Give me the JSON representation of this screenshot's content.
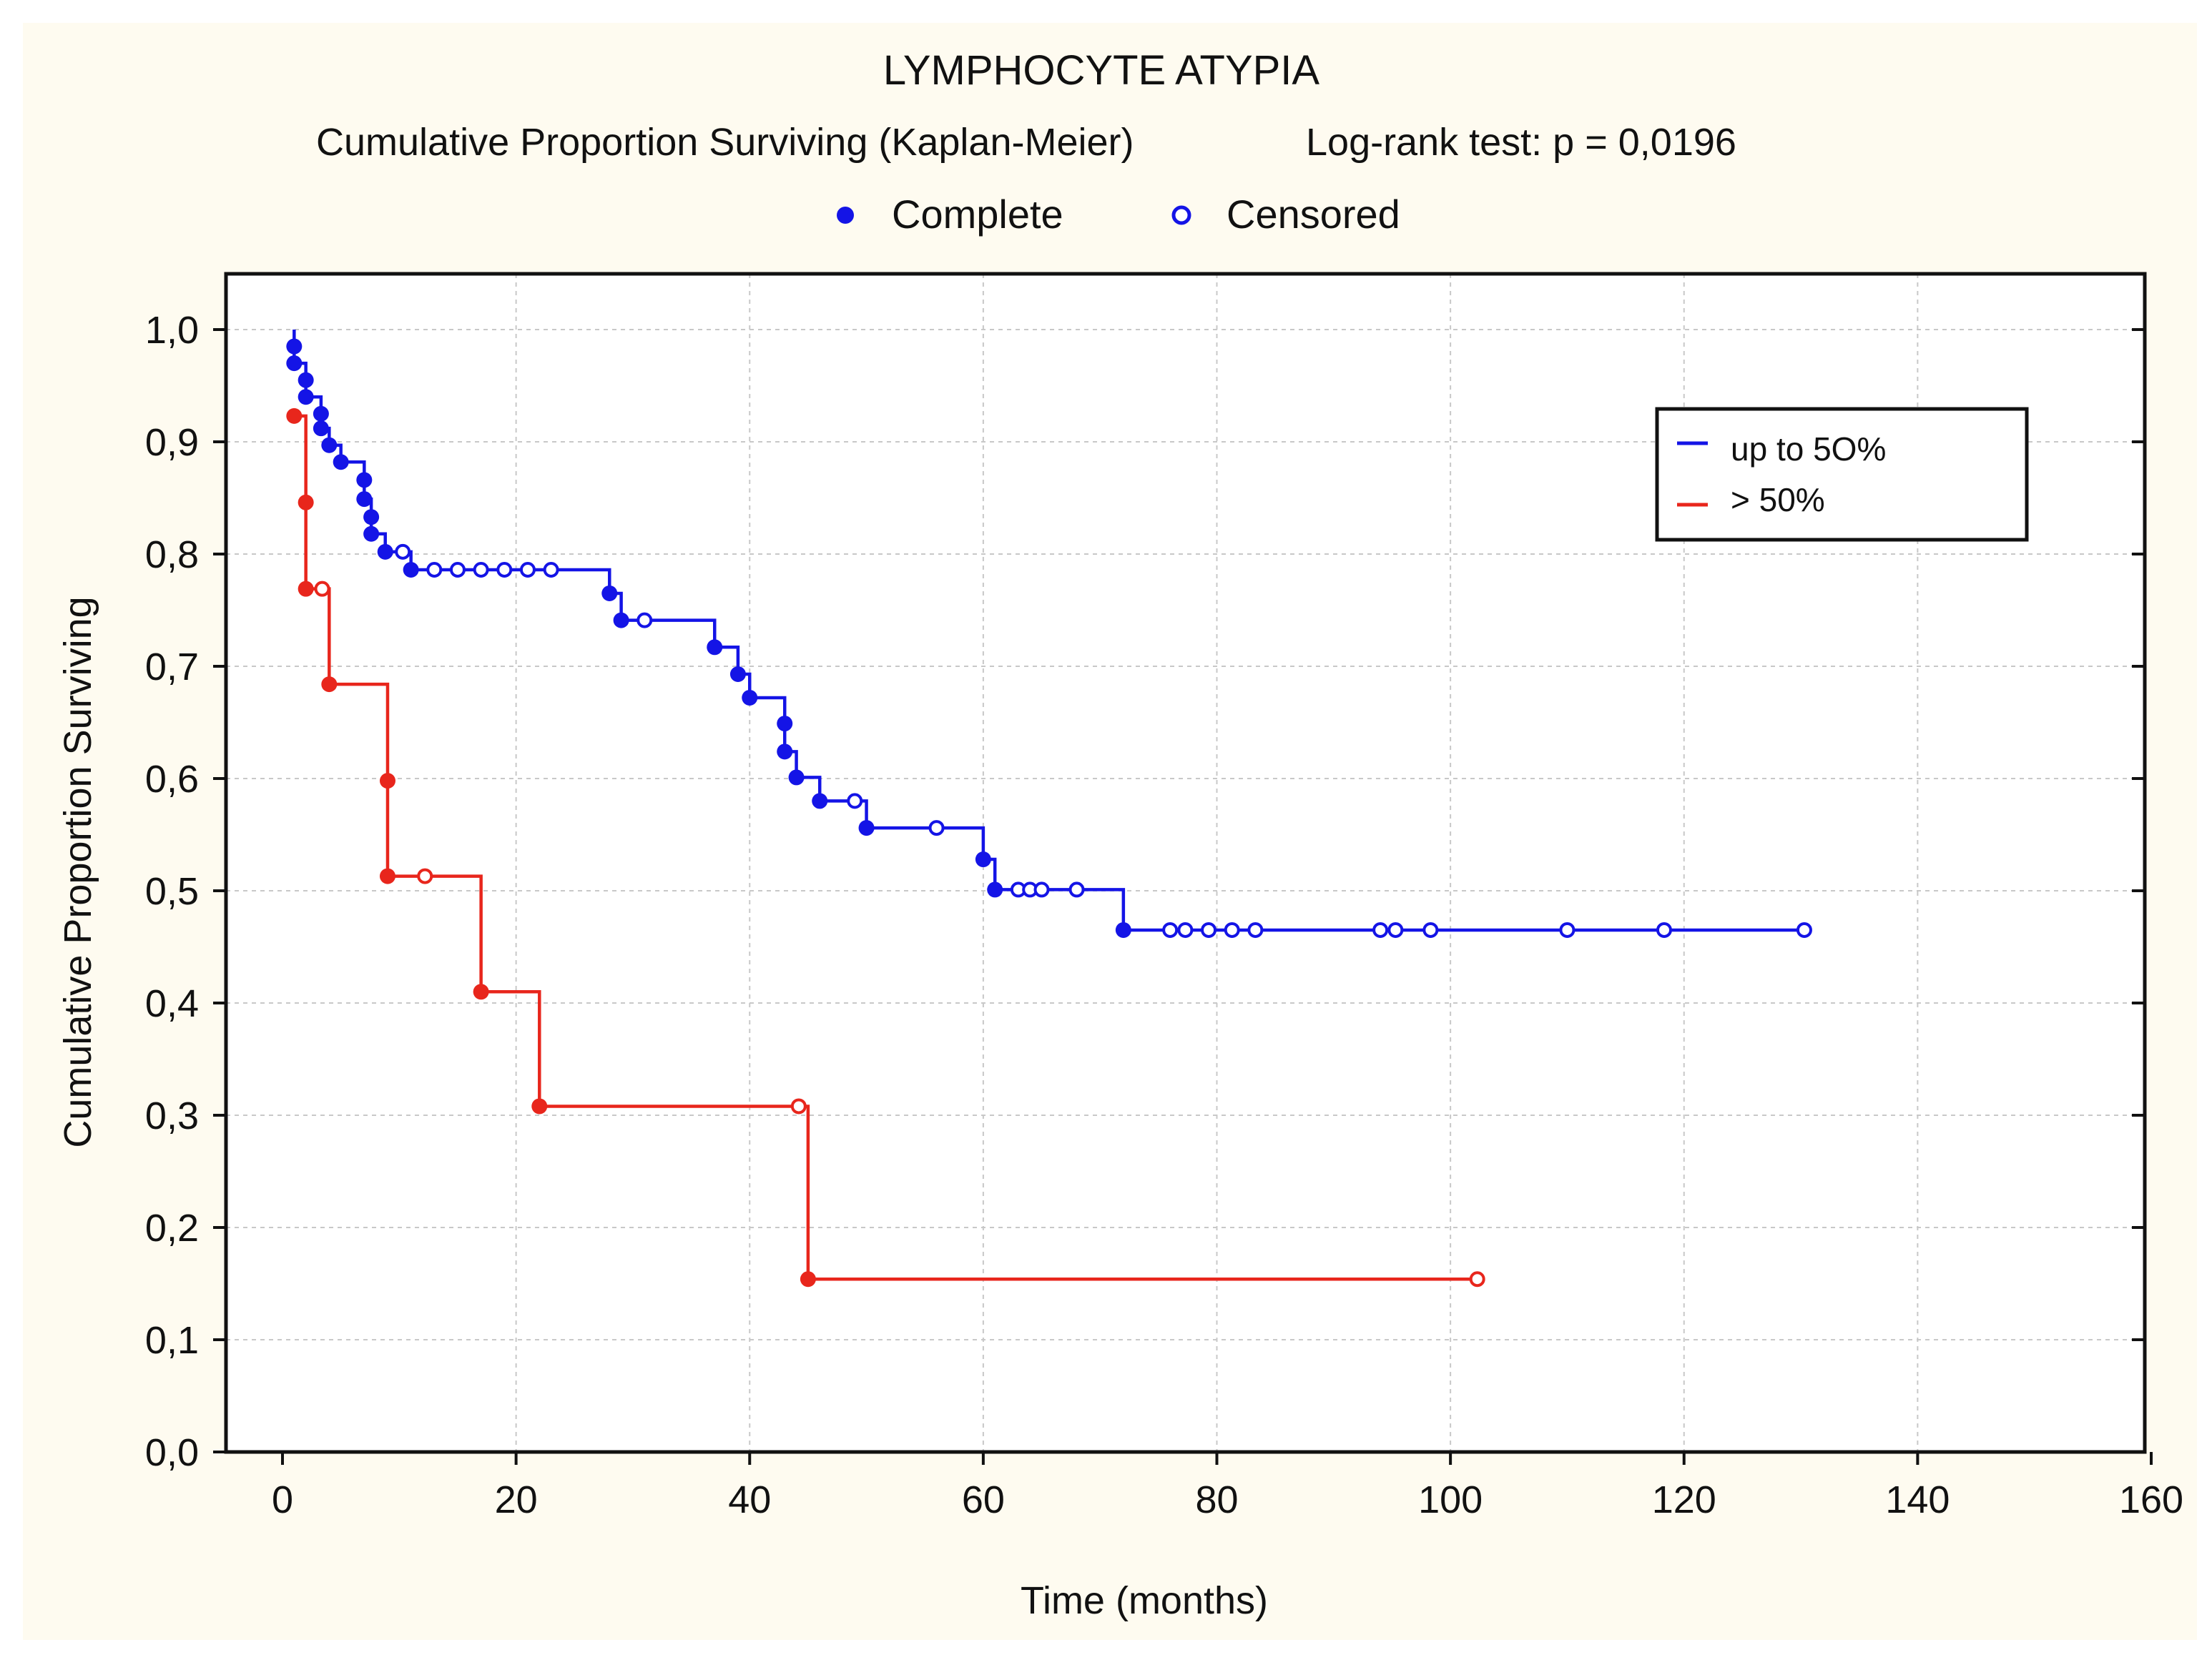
{
  "chart_data": {
    "type": "line",
    "subtype": "kaplan-meier step",
    "title": "LYMPHOCYTE ATYPIA",
    "subtitle_left": "Cumulative Proportion Surviving (Kaplan-Meier)",
    "subtitle_right": "Log-rank test: p = 0,0196",
    "marker_legend": [
      {
        "label": "Complete",
        "marker": "filled-circle"
      },
      {
        "label": "Censored",
        "marker": "open-circle"
      }
    ],
    "xlabel": "Time (months)",
    "ylabel": "Cumulative Proportion Surviving",
    "xlim": [
      0,
      160
    ],
    "ylim": [
      0,
      1
    ],
    "x_ticks": [
      0,
      20,
      40,
      60,
      80,
      100,
      120,
      140,
      160
    ],
    "x_tick_labels": [
      "0",
      "20",
      "40",
      "60",
      "80",
      "100",
      "120",
      "140",
      "160"
    ],
    "y_ticks": [
      0,
      0.1,
      0.2,
      0.3,
      0.4,
      0.5,
      0.6,
      0.7,
      0.8,
      0.9,
      1.0
    ],
    "y_tick_labels": [
      "0,0",
      "0,1",
      "0,2",
      "0,3",
      "0,4",
      "0,5",
      "0,6",
      "0,7",
      "0,8",
      "0,9",
      "1,0"
    ],
    "grid": true,
    "legend_position": "top-right",
    "series": [
      {
        "name": "up to 5O%",
        "color": "#1414e6",
        "steps": [
          [
            1,
            0.985
          ],
          [
            1,
            0.97
          ],
          [
            2,
            0.955
          ],
          [
            2,
            0.94
          ],
          [
            3.3,
            0.925
          ],
          [
            3.3,
            0.912
          ],
          [
            4,
            0.897
          ],
          [
            5,
            0.882
          ],
          [
            7,
            0.866
          ],
          [
            7,
            0.849
          ],
          [
            7.6,
            0.833
          ],
          [
            7.6,
            0.818
          ],
          [
            8.8,
            0.802
          ],
          [
            11,
            0.786
          ],
          [
            28,
            0.765
          ],
          [
            29,
            0.741
          ],
          [
            37,
            0.717
          ],
          [
            39,
            0.693
          ],
          [
            40,
            0.672
          ],
          [
            43,
            0.649
          ],
          [
            43,
            0.624
          ],
          [
            44,
            0.601
          ],
          [
            46,
            0.58
          ],
          [
            50,
            0.556
          ],
          [
            60,
            0.528
          ],
          [
            61,
            0.501
          ],
          [
            72,
            0.465
          ]
        ],
        "events": [
          {
            "x": 1,
            "y": 0.985
          },
          {
            "x": 1,
            "y": 0.97
          },
          {
            "x": 2,
            "y": 0.955
          },
          {
            "x": 2,
            "y": 0.94
          },
          {
            "x": 3.3,
            "y": 0.925
          },
          {
            "x": 3.3,
            "y": 0.912
          },
          {
            "x": 4,
            "y": 0.897
          },
          {
            "x": 5,
            "y": 0.882
          },
          {
            "x": 7,
            "y": 0.866
          },
          {
            "x": 7,
            "y": 0.849
          },
          {
            "x": 7.6,
            "y": 0.833
          },
          {
            "x": 7.6,
            "y": 0.818
          },
          {
            "x": 8.8,
            "y": 0.802
          },
          {
            "x": 11,
            "y": 0.786
          },
          {
            "x": 28,
            "y": 0.765
          },
          {
            "x": 29,
            "y": 0.741
          },
          {
            "x": 37,
            "y": 0.717
          },
          {
            "x": 39,
            "y": 0.693
          },
          {
            "x": 40,
            "y": 0.672
          },
          {
            "x": 43,
            "y": 0.649
          },
          {
            "x": 43,
            "y": 0.624
          },
          {
            "x": 44,
            "y": 0.601
          },
          {
            "x": 46,
            "y": 0.58
          },
          {
            "x": 50,
            "y": 0.556
          },
          {
            "x": 60,
            "y": 0.528
          },
          {
            "x": 61,
            "y": 0.501
          },
          {
            "x": 72,
            "y": 0.465
          }
        ],
        "censored": [
          {
            "x": 10.3,
            "y": 0.802
          },
          {
            "x": 13,
            "y": 0.786
          },
          {
            "x": 15,
            "y": 0.786
          },
          {
            "x": 17,
            "y": 0.786
          },
          {
            "x": 19,
            "y": 0.786
          },
          {
            "x": 21,
            "y": 0.786
          },
          {
            "x": 23,
            "y": 0.786
          },
          {
            "x": 31,
            "y": 0.741
          },
          {
            "x": 49,
            "y": 0.58
          },
          {
            "x": 56,
            "y": 0.556
          },
          {
            "x": 63,
            "y": 0.501
          },
          {
            "x": 64,
            "y": 0.501
          },
          {
            "x": 65,
            "y": 0.501
          },
          {
            "x": 68,
            "y": 0.501
          },
          {
            "x": 76,
            "y": 0.465
          },
          {
            "x": 77.3,
            "y": 0.465
          },
          {
            "x": 79.3,
            "y": 0.465
          },
          {
            "x": 81.3,
            "y": 0.465
          },
          {
            "x": 83.3,
            "y": 0.465
          },
          {
            "x": 94,
            "y": 0.465
          },
          {
            "x": 95.3,
            "y": 0.465
          },
          {
            "x": 98.3,
            "y": 0.465
          },
          {
            "x": 110,
            "y": 0.465
          },
          {
            "x": 118.3,
            "y": 0.465
          },
          {
            "x": 130.3,
            "y": 0.465
          }
        ],
        "end_x": 130.3
      },
      {
        "name": "> 50%",
        "color": "#e8261c",
        "start_y": 0.923,
        "steps": [
          [
            2,
            0.846
          ],
          [
            2,
            0.769
          ],
          [
            4,
            0.684
          ],
          [
            9,
            0.598
          ],
          [
            9,
            0.513
          ],
          [
            17,
            0.41
          ],
          [
            22,
            0.308
          ],
          [
            45,
            0.154
          ]
        ],
        "events": [
          {
            "x": 1,
            "y": 0.923
          },
          {
            "x": 2,
            "y": 0.846
          },
          {
            "x": 2,
            "y": 0.769
          },
          {
            "x": 4,
            "y": 0.684
          },
          {
            "x": 9,
            "y": 0.598
          },
          {
            "x": 9,
            "y": 0.513
          },
          {
            "x": 17,
            "y": 0.41
          },
          {
            "x": 22,
            "y": 0.308
          },
          {
            "x": 45,
            "y": 0.154
          }
        ],
        "censored": [
          {
            "x": 3.4,
            "y": 0.769
          },
          {
            "x": 12.2,
            "y": 0.513
          },
          {
            "x": 44.2,
            "y": 0.308
          },
          {
            "x": 102.3,
            "y": 0.154
          }
        ],
        "end_x": 102.3
      }
    ]
  }
}
